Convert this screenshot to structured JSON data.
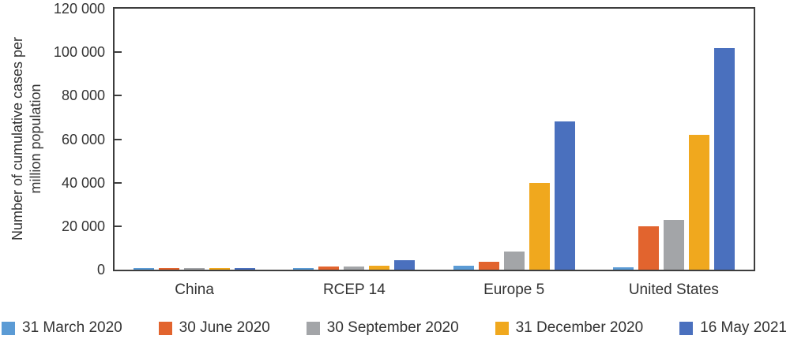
{
  "chart_data": {
    "type": "bar",
    "title": "",
    "ylabel": "Number of cumulative cases per million population",
    "ylabel_lines": [
      "Number of cumulative cases per",
      "million population"
    ],
    "xlabel": "",
    "categories": [
      "China",
      "RCEP 14",
      "Europe 5",
      "United States"
    ],
    "series": [
      {
        "name": "31 March 2020",
        "color": "#5B9BD5",
        "values": [
          700,
          700,
          1800,
          1200
        ]
      },
      {
        "name": "30 June 2020",
        "color": "#E2642E",
        "values": [
          800,
          1500,
          3800,
          20000
        ]
      },
      {
        "name": "30 September 2020",
        "color": "#A3A5A8",
        "values": [
          800,
          1400,
          8300,
          23000
        ]
      },
      {
        "name": "31 December 2020",
        "color": "#F0A81E",
        "values": [
          800,
          1900,
          40000,
          62000
        ]
      },
      {
        "name": "16 May 2021",
        "color": "#4A70BE",
        "values": [
          800,
          4500,
          68000,
          102000
        ]
      }
    ],
    "ylim": [
      0,
      120000
    ],
    "ytick_step": 20000,
    "yticks": [
      0,
      20000,
      40000,
      60000,
      80000,
      100000,
      120000
    ],
    "ytick_labels": [
      "0",
      "20 000",
      "40 000",
      "60 000",
      "80 000",
      "100 000",
      "120 000"
    ],
    "grid": false,
    "legend_position": "bottom",
    "plot_border_color": "#3d3d3d",
    "text_color": "#333333"
  }
}
